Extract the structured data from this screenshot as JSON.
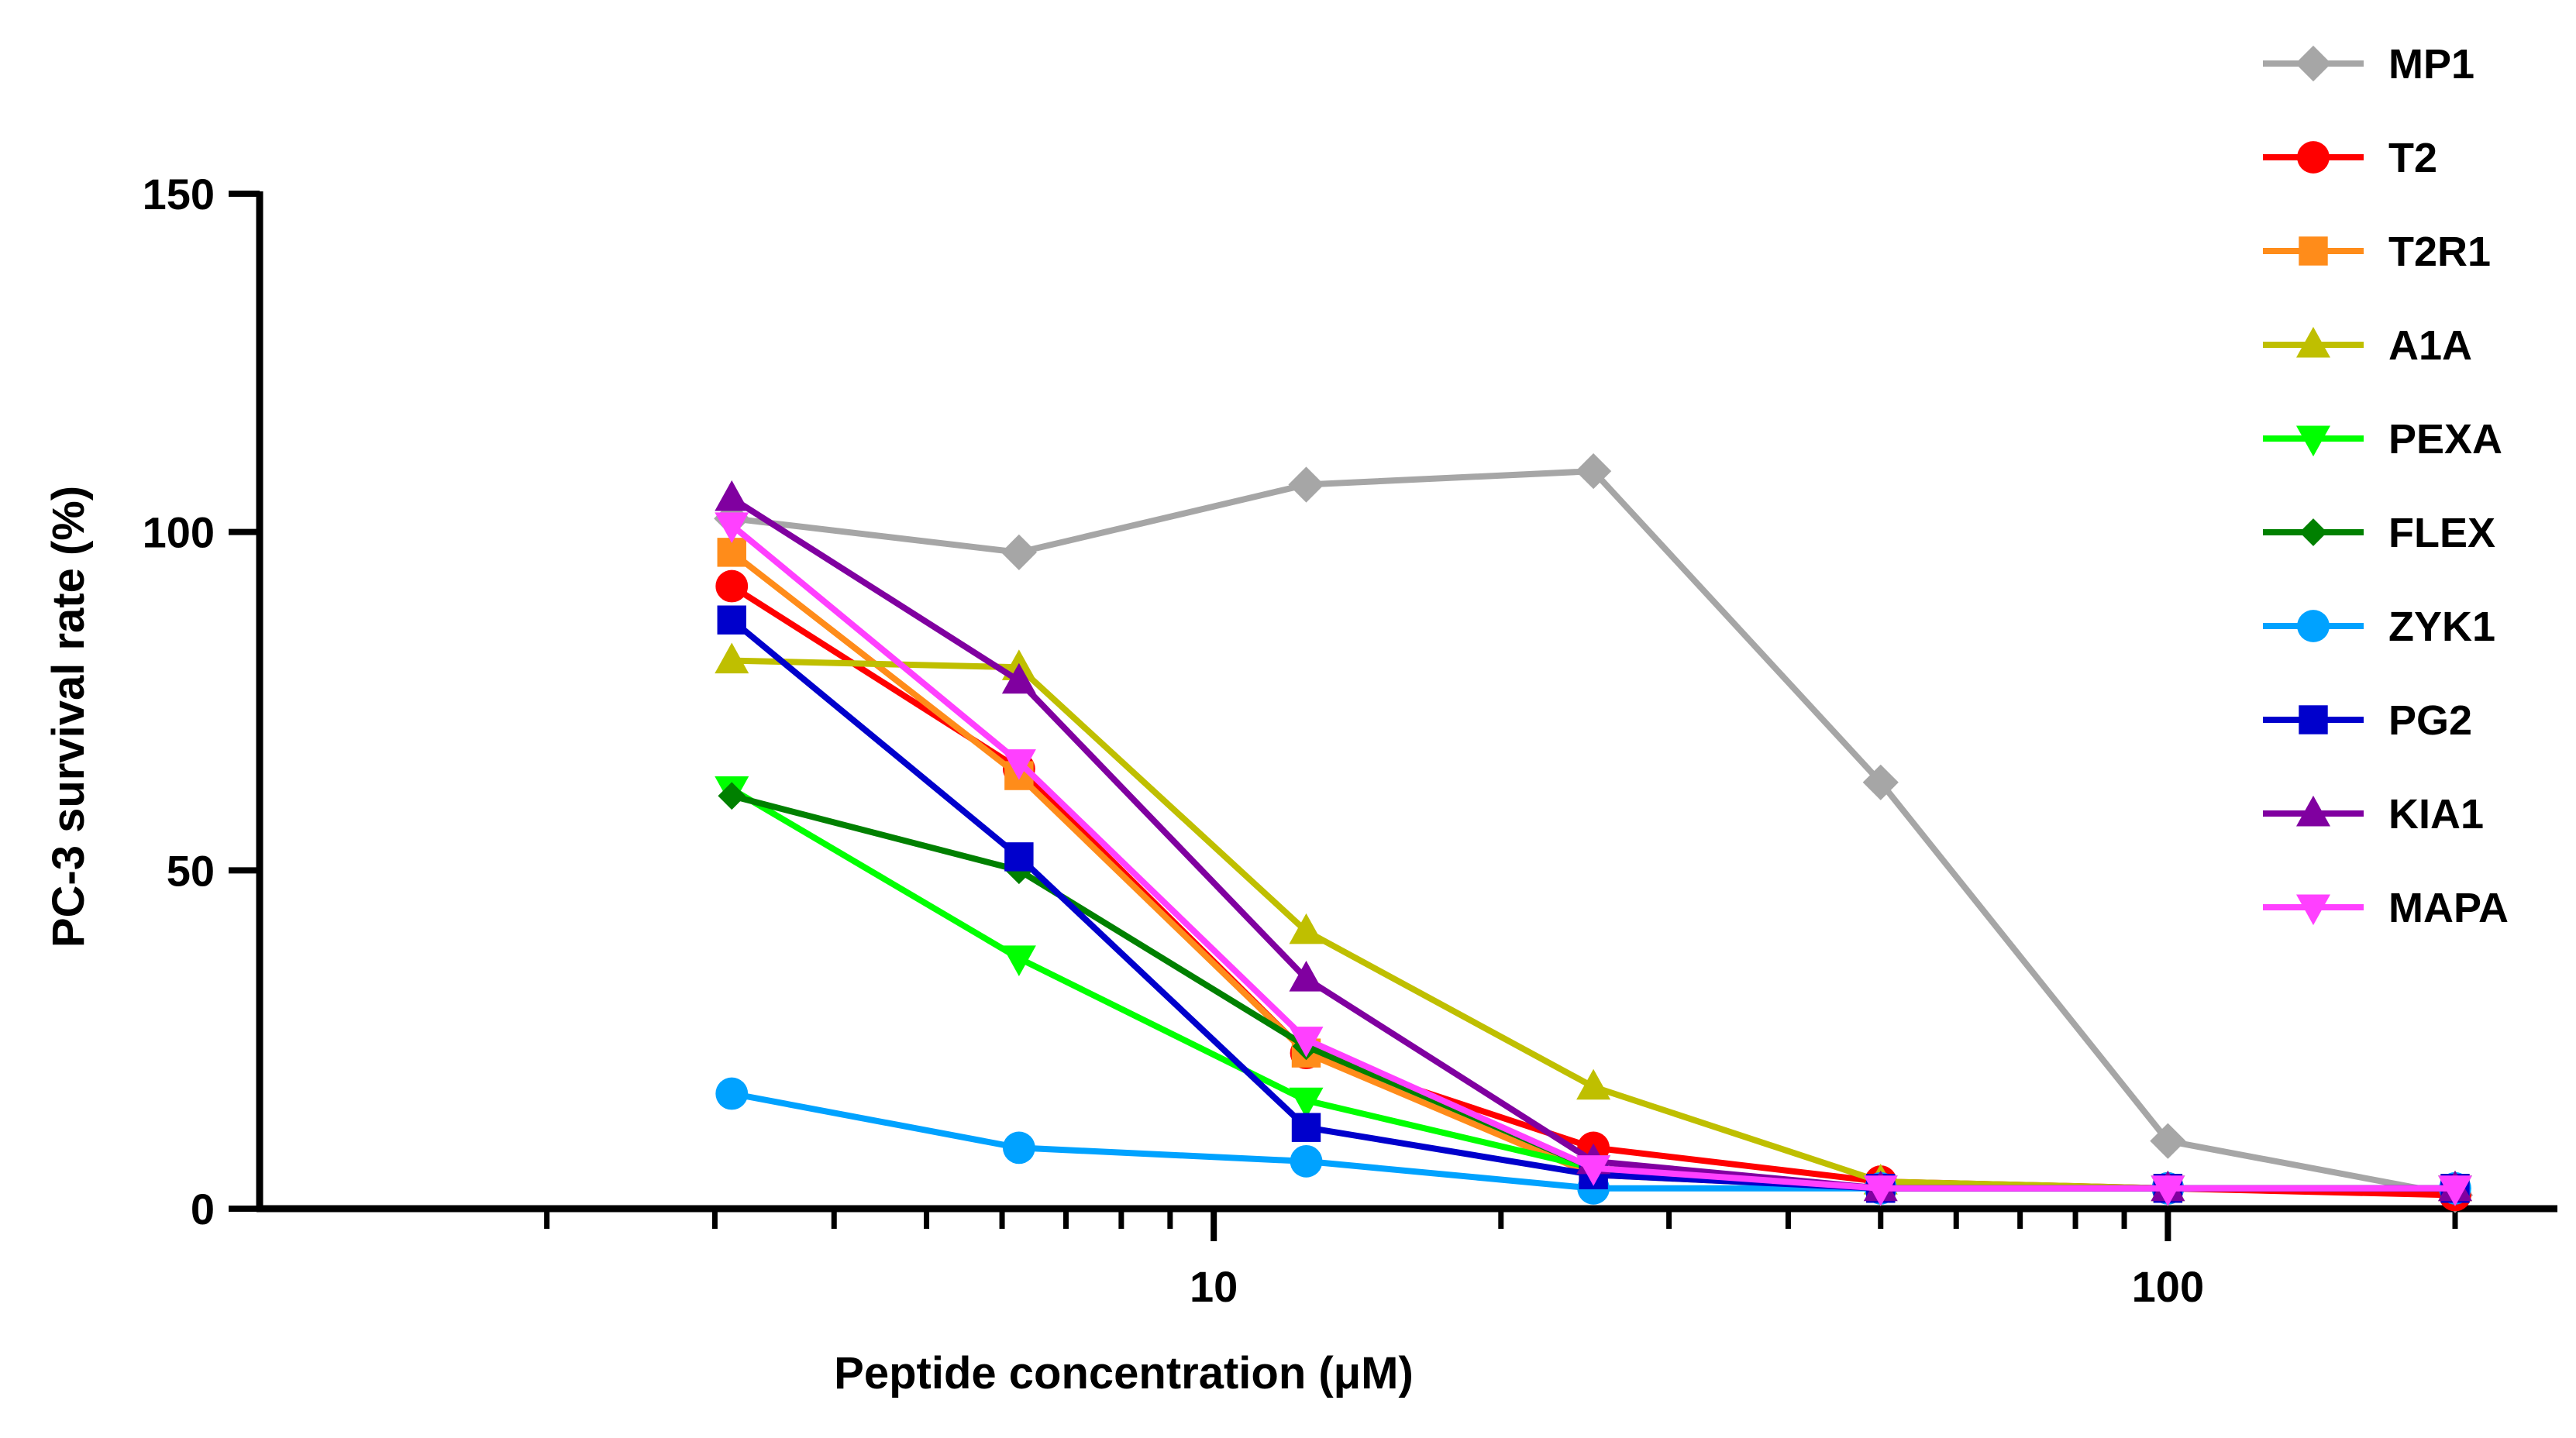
{
  "chart_data": {
    "type": "line",
    "title": "",
    "xlabel": "Peptide concentration (μM)",
    "ylabel": "PC-3 survival rate (%)",
    "x_scale": "log",
    "xlim": [
      1,
      256
    ],
    "ylim": [
      0,
      150
    ],
    "x_ticks": [
      10,
      100
    ],
    "x_tick_labels": [
      "10",
      "100"
    ],
    "y_ticks": [
      0,
      50,
      100,
      150
    ],
    "y_tick_labels": [
      "0",
      "50",
      "100",
      "150"
    ],
    "grid": false,
    "legend_position": "right",
    "x": [
      3.125,
      6.25,
      12.5,
      25,
      50,
      100,
      200
    ],
    "series": [
      {
        "name": "MP1",
        "color": "#A6A6A6",
        "marker": "diamond",
        "values": [
          102,
          97,
          107,
          109,
          63,
          10,
          2
        ]
      },
      {
        "name": "T2",
        "color": "#FF0000",
        "marker": "circle",
        "values": [
          92,
          65,
          23,
          9,
          4,
          3,
          2
        ]
      },
      {
        "name": "T2R1",
        "color": "#FF8C1A",
        "marker": "square",
        "values": [
          97,
          64,
          23,
          5,
          3,
          3,
          3
        ]
      },
      {
        "name": "A1A",
        "color": "#BFBF00",
        "marker": "triangle-up",
        "values": [
          81,
          80,
          41,
          18,
          4,
          3,
          3
        ]
      },
      {
        "name": "PEXA",
        "color": "#00FF00",
        "marker": "triangle-down",
        "values": [
          62,
          37,
          16,
          6,
          3,
          3,
          3
        ]
      },
      {
        "name": "FLEX",
        "color": "#008000",
        "marker": "diamond",
        "values": [
          61,
          50,
          24,
          6,
          3,
          3,
          3
        ]
      },
      {
        "name": "ZYK1",
        "color": "#00A2FF",
        "marker": "circle",
        "values": [
          17,
          9,
          7,
          3,
          3,
          3,
          3
        ]
      },
      {
        "name": "PG2",
        "color": "#0000CC",
        "marker": "square",
        "values": [
          87,
          52,
          12,
          5,
          3,
          3,
          3
        ]
      },
      {
        "name": "KIA1",
        "color": "#8000A0",
        "marker": "triangle-up",
        "values": [
          105,
          78,
          34,
          7,
          3,
          3,
          3
        ]
      },
      {
        "name": "MAPA",
        "color": "#FF40FF",
        "marker": "triangle-down",
        "values": [
          101,
          66,
          25,
          6,
          3,
          3,
          3
        ]
      }
    ]
  }
}
